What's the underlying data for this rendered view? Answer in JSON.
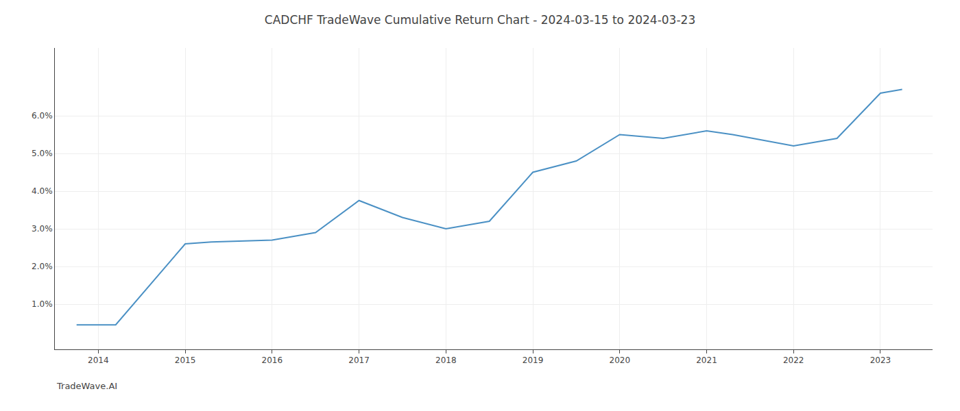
{
  "chart_data": {
    "type": "line",
    "title": "CADCHF TradeWave Cumulative Return Chart - 2024-03-15 to 2024-03-23",
    "annotations": [
      "TradeWave.AI"
    ],
    "x": [
      2013.75,
      2014.2,
      2015.0,
      2015.3,
      2016.0,
      2016.5,
      2017.0,
      2017.5,
      2018.0,
      2018.5,
      2019.0,
      2019.5,
      2020.0,
      2020.5,
      2021.0,
      2021.3,
      2022.0,
      2022.5,
      2023.0,
      2023.25
    ],
    "values": [
      0.0045,
      0.0045,
      0.026,
      0.0265,
      0.027,
      0.029,
      0.0375,
      0.033,
      0.03,
      0.032,
      0.045,
      0.048,
      0.055,
      0.054,
      0.056,
      0.055,
      0.052,
      0.054,
      0.066,
      0.067
    ],
    "color": "#4a90c4",
    "xlim": [
      2013.5,
      2023.6
    ],
    "ylim": [
      -0.002,
      0.078
    ],
    "xticks": [
      2014,
      2015,
      2016,
      2017,
      2018,
      2019,
      2020,
      2021,
      2022,
      2023
    ],
    "yticks": [
      {
        "value": 0.01,
        "label": "1.0%"
      },
      {
        "value": 0.02,
        "label": "2.0%"
      },
      {
        "value": 0.03,
        "label": "3.0%"
      },
      {
        "value": 0.04,
        "label": "4.0%"
      },
      {
        "value": 0.05,
        "label": "5.0%"
      },
      {
        "value": 0.06,
        "label": "6.0%"
      }
    ],
    "grid": true
  }
}
